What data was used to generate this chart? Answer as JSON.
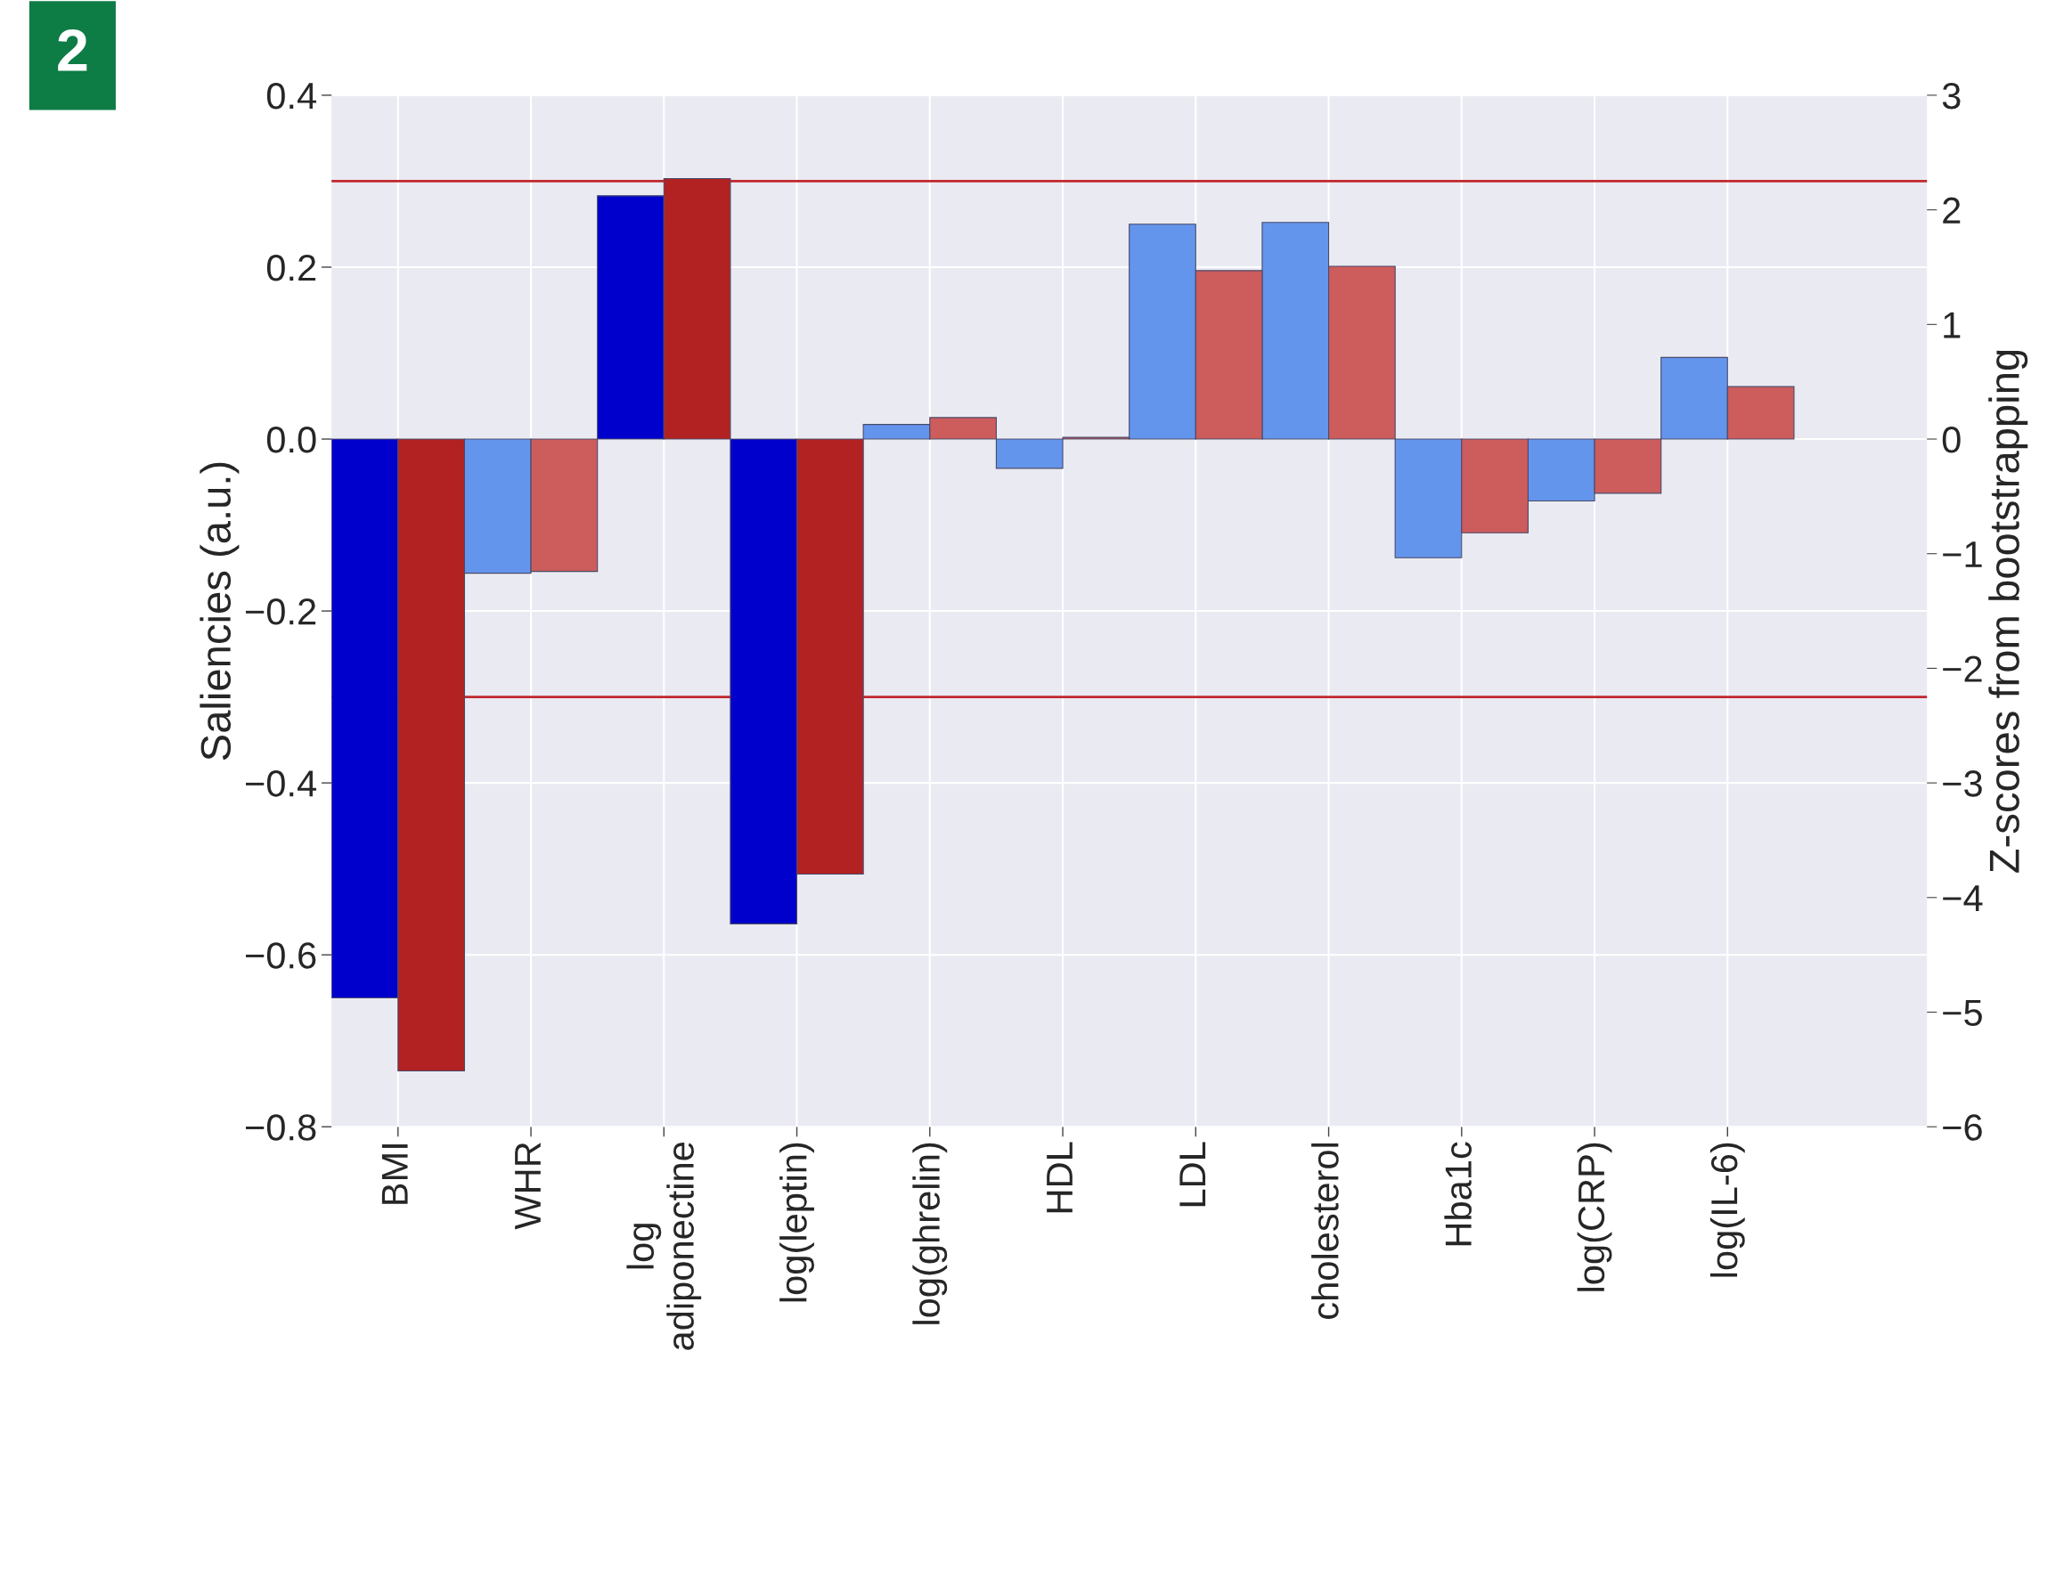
{
  "chart_data": {
    "type": "bar",
    "ylabel": "Saliencies (a.u.)",
    "y2label": "Z-scores from bootstrapping",
    "categories": [
      "BMI",
      "WHR",
      "log\nadiponectine",
      "log(leptin)",
      "log(ghrelin)",
      "HDL",
      "LDL",
      "cholesterol",
      "Hba1c",
      "log(CRP)",
      "log(IL-6)"
    ],
    "series": [
      {
        "colors": [
          "#0000cd",
          "#6495ed",
          "#0000cd",
          "#0000cd",
          "#6495ed",
          "#6495ed",
          "#6495ed",
          "#6495ed",
          "#6495ed",
          "#6495ed",
          "#6495ed"
        ],
        "values": [
          -0.65,
          -0.156,
          0.283,
          -0.564,
          0.017,
          -0.034,
          0.25,
          0.252,
          -0.138,
          -0.072,
          0.095
        ]
      },
      {
        "colors": [
          "#b22222",
          "#cd5c5c",
          "#b22222",
          "#b22222",
          "#cd5c5c",
          "#cd5c5c",
          "#cd5c5c",
          "#cd5c5c",
          "#cd5c5c",
          "#cd5c5c",
          "#cd5c5c"
        ],
        "values": [
          -0.735,
          -0.154,
          0.303,
          -0.506,
          0.025,
          0.002,
          0.196,
          0.201,
          -0.109,
          -0.063,
          0.061
        ]
      }
    ],
    "ylim": [
      -0.8,
      0.4
    ],
    "yticks": [
      {
        "value": -0.8,
        "label": "−0.8"
      },
      {
        "value": -0.6,
        "label": "−0.6"
      },
      {
        "value": -0.4,
        "label": "−0.4"
      },
      {
        "value": -0.2,
        "label": "−0.2"
      },
      {
        "value": 0,
        "label": "0.0"
      },
      {
        "value": 0.2,
        "label": "0.2"
      },
      {
        "value": 0.4,
        "label": "0.4"
      }
    ],
    "y2lim": [
      -6,
      3
    ],
    "y2ticks": [
      -6,
      -5,
      -4,
      -3,
      -2,
      -1,
      0,
      1,
      2,
      3
    ],
    "ref_lines": [
      {
        "axis": "y",
        "value": 0.3,
        "color": "#c0282d"
      },
      {
        "axis": "y",
        "value": -0.3,
        "color": "#c0282d"
      }
    ],
    "annotations": [
      "2"
    ],
    "grid": true,
    "legend": false
  }
}
